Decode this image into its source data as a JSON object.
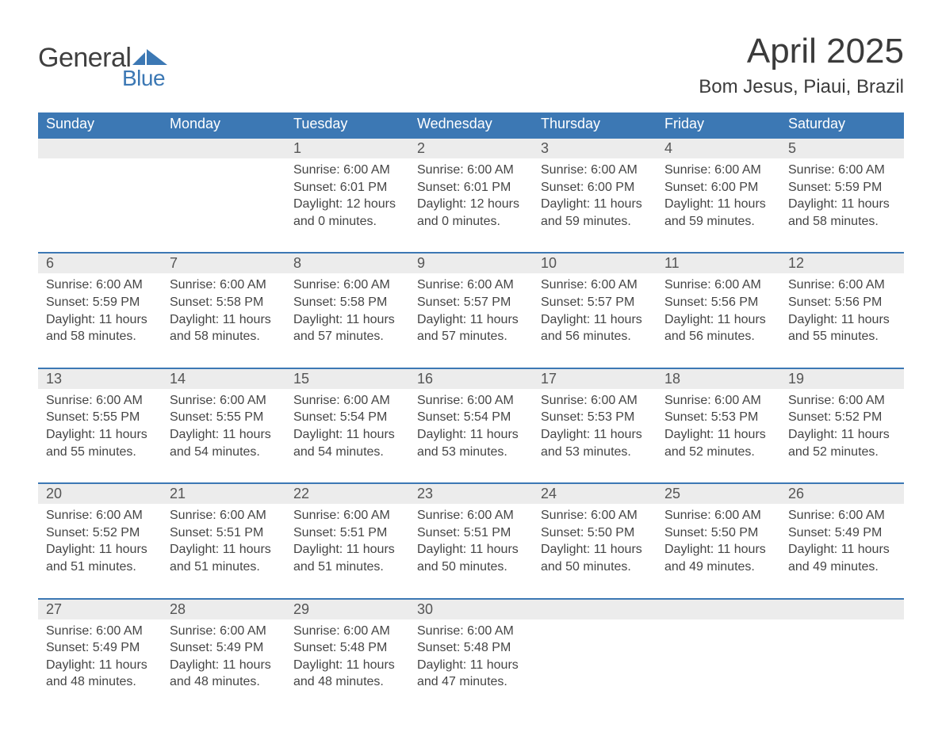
{
  "logo": {
    "general": "General",
    "blue": "Blue",
    "icon_color": "#3c78b4"
  },
  "title": "April 2025",
  "location": "Bom Jesus, Piaui, Brazil",
  "colors": {
    "header_bg": "#3c78b4",
    "header_text": "#ffffff",
    "row_head_bg": "#ececec",
    "row_border": "#3c78b4",
    "body_text": "#404040",
    "title_text": "#3b3b3b"
  },
  "day_headers": [
    "Sunday",
    "Monday",
    "Tuesday",
    "Wednesday",
    "Thursday",
    "Friday",
    "Saturday"
  ],
  "weeks": [
    [
      null,
      null,
      {
        "day": "1",
        "sunrise": "Sunrise: 6:00 AM",
        "sunset": "Sunset: 6:01 PM",
        "dl1": "Daylight: 12 hours",
        "dl2": "and 0 minutes."
      },
      {
        "day": "2",
        "sunrise": "Sunrise: 6:00 AM",
        "sunset": "Sunset: 6:01 PM",
        "dl1": "Daylight: 12 hours",
        "dl2": "and 0 minutes."
      },
      {
        "day": "3",
        "sunrise": "Sunrise: 6:00 AM",
        "sunset": "Sunset: 6:00 PM",
        "dl1": "Daylight: 11 hours",
        "dl2": "and 59 minutes."
      },
      {
        "day": "4",
        "sunrise": "Sunrise: 6:00 AM",
        "sunset": "Sunset: 6:00 PM",
        "dl1": "Daylight: 11 hours",
        "dl2": "and 59 minutes."
      },
      {
        "day": "5",
        "sunrise": "Sunrise: 6:00 AM",
        "sunset": "Sunset: 5:59 PM",
        "dl1": "Daylight: 11 hours",
        "dl2": "and 58 minutes."
      }
    ],
    [
      {
        "day": "6",
        "sunrise": "Sunrise: 6:00 AM",
        "sunset": "Sunset: 5:59 PM",
        "dl1": "Daylight: 11 hours",
        "dl2": "and 58 minutes."
      },
      {
        "day": "7",
        "sunrise": "Sunrise: 6:00 AM",
        "sunset": "Sunset: 5:58 PM",
        "dl1": "Daylight: 11 hours",
        "dl2": "and 58 minutes."
      },
      {
        "day": "8",
        "sunrise": "Sunrise: 6:00 AM",
        "sunset": "Sunset: 5:58 PM",
        "dl1": "Daylight: 11 hours",
        "dl2": "and 57 minutes."
      },
      {
        "day": "9",
        "sunrise": "Sunrise: 6:00 AM",
        "sunset": "Sunset: 5:57 PM",
        "dl1": "Daylight: 11 hours",
        "dl2": "and 57 minutes."
      },
      {
        "day": "10",
        "sunrise": "Sunrise: 6:00 AM",
        "sunset": "Sunset: 5:57 PM",
        "dl1": "Daylight: 11 hours",
        "dl2": "and 56 minutes."
      },
      {
        "day": "11",
        "sunrise": "Sunrise: 6:00 AM",
        "sunset": "Sunset: 5:56 PM",
        "dl1": "Daylight: 11 hours",
        "dl2": "and 56 minutes."
      },
      {
        "day": "12",
        "sunrise": "Sunrise: 6:00 AM",
        "sunset": "Sunset: 5:56 PM",
        "dl1": "Daylight: 11 hours",
        "dl2": "and 55 minutes."
      }
    ],
    [
      {
        "day": "13",
        "sunrise": "Sunrise: 6:00 AM",
        "sunset": "Sunset: 5:55 PM",
        "dl1": "Daylight: 11 hours",
        "dl2": "and 55 minutes."
      },
      {
        "day": "14",
        "sunrise": "Sunrise: 6:00 AM",
        "sunset": "Sunset: 5:55 PM",
        "dl1": "Daylight: 11 hours",
        "dl2": "and 54 minutes."
      },
      {
        "day": "15",
        "sunrise": "Sunrise: 6:00 AM",
        "sunset": "Sunset: 5:54 PM",
        "dl1": "Daylight: 11 hours",
        "dl2": "and 54 minutes."
      },
      {
        "day": "16",
        "sunrise": "Sunrise: 6:00 AM",
        "sunset": "Sunset: 5:54 PM",
        "dl1": "Daylight: 11 hours",
        "dl2": "and 53 minutes."
      },
      {
        "day": "17",
        "sunrise": "Sunrise: 6:00 AM",
        "sunset": "Sunset: 5:53 PM",
        "dl1": "Daylight: 11 hours",
        "dl2": "and 53 minutes."
      },
      {
        "day": "18",
        "sunrise": "Sunrise: 6:00 AM",
        "sunset": "Sunset: 5:53 PM",
        "dl1": "Daylight: 11 hours",
        "dl2": "and 52 minutes."
      },
      {
        "day": "19",
        "sunrise": "Sunrise: 6:00 AM",
        "sunset": "Sunset: 5:52 PM",
        "dl1": "Daylight: 11 hours",
        "dl2": "and 52 minutes."
      }
    ],
    [
      {
        "day": "20",
        "sunrise": "Sunrise: 6:00 AM",
        "sunset": "Sunset: 5:52 PM",
        "dl1": "Daylight: 11 hours",
        "dl2": "and 51 minutes."
      },
      {
        "day": "21",
        "sunrise": "Sunrise: 6:00 AM",
        "sunset": "Sunset: 5:51 PM",
        "dl1": "Daylight: 11 hours",
        "dl2": "and 51 minutes."
      },
      {
        "day": "22",
        "sunrise": "Sunrise: 6:00 AM",
        "sunset": "Sunset: 5:51 PM",
        "dl1": "Daylight: 11 hours",
        "dl2": "and 51 minutes."
      },
      {
        "day": "23",
        "sunrise": "Sunrise: 6:00 AM",
        "sunset": "Sunset: 5:51 PM",
        "dl1": "Daylight: 11 hours",
        "dl2": "and 50 minutes."
      },
      {
        "day": "24",
        "sunrise": "Sunrise: 6:00 AM",
        "sunset": "Sunset: 5:50 PM",
        "dl1": "Daylight: 11 hours",
        "dl2": "and 50 minutes."
      },
      {
        "day": "25",
        "sunrise": "Sunrise: 6:00 AM",
        "sunset": "Sunset: 5:50 PM",
        "dl1": "Daylight: 11 hours",
        "dl2": "and 49 minutes."
      },
      {
        "day": "26",
        "sunrise": "Sunrise: 6:00 AM",
        "sunset": "Sunset: 5:49 PM",
        "dl1": "Daylight: 11 hours",
        "dl2": "and 49 minutes."
      }
    ],
    [
      {
        "day": "27",
        "sunrise": "Sunrise: 6:00 AM",
        "sunset": "Sunset: 5:49 PM",
        "dl1": "Daylight: 11 hours",
        "dl2": "and 48 minutes."
      },
      {
        "day": "28",
        "sunrise": "Sunrise: 6:00 AM",
        "sunset": "Sunset: 5:49 PM",
        "dl1": "Daylight: 11 hours",
        "dl2": "and 48 minutes."
      },
      {
        "day": "29",
        "sunrise": "Sunrise: 6:00 AM",
        "sunset": "Sunset: 5:48 PM",
        "dl1": "Daylight: 11 hours",
        "dl2": "and 48 minutes."
      },
      {
        "day": "30",
        "sunrise": "Sunrise: 6:00 AM",
        "sunset": "Sunset: 5:48 PM",
        "dl1": "Daylight: 11 hours",
        "dl2": "and 47 minutes."
      },
      null,
      null,
      null
    ]
  ]
}
